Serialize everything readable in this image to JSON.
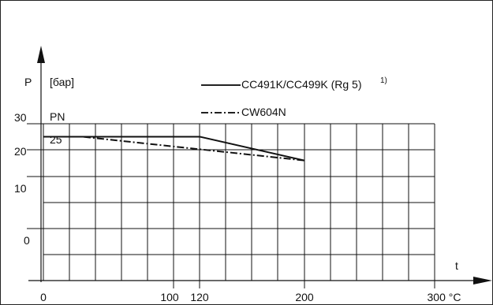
{
  "chart_data": {
    "type": "line",
    "y_axis_symbol": "P",
    "y_unit": "[бар]",
    "x_axis_symbol": "t",
    "pn_label": "PN",
    "pn_value": "25",
    "y_ticks": [
      "30",
      "20",
      "10",
      "0"
    ],
    "x_ticks": [
      "0",
      "100",
      "120",
      "200",
      "300 °C"
    ],
    "xlim": [
      0,
      300
    ],
    "ylim": [
      0,
      30
    ],
    "series": [
      {
        "name": "CC491K/CC499K (Rg 5)",
        "footnote": "1)",
        "line_style": "solid",
        "x": [
          0,
          120,
          200
        ],
        "y": [
          25,
          25,
          16
        ]
      },
      {
        "name": "CW604N",
        "line_style": "dash-dot",
        "x": [
          0,
          30,
          200
        ],
        "y": [
          25,
          25,
          16
        ]
      }
    ],
    "grid": true,
    "legend_position": "top-center"
  }
}
